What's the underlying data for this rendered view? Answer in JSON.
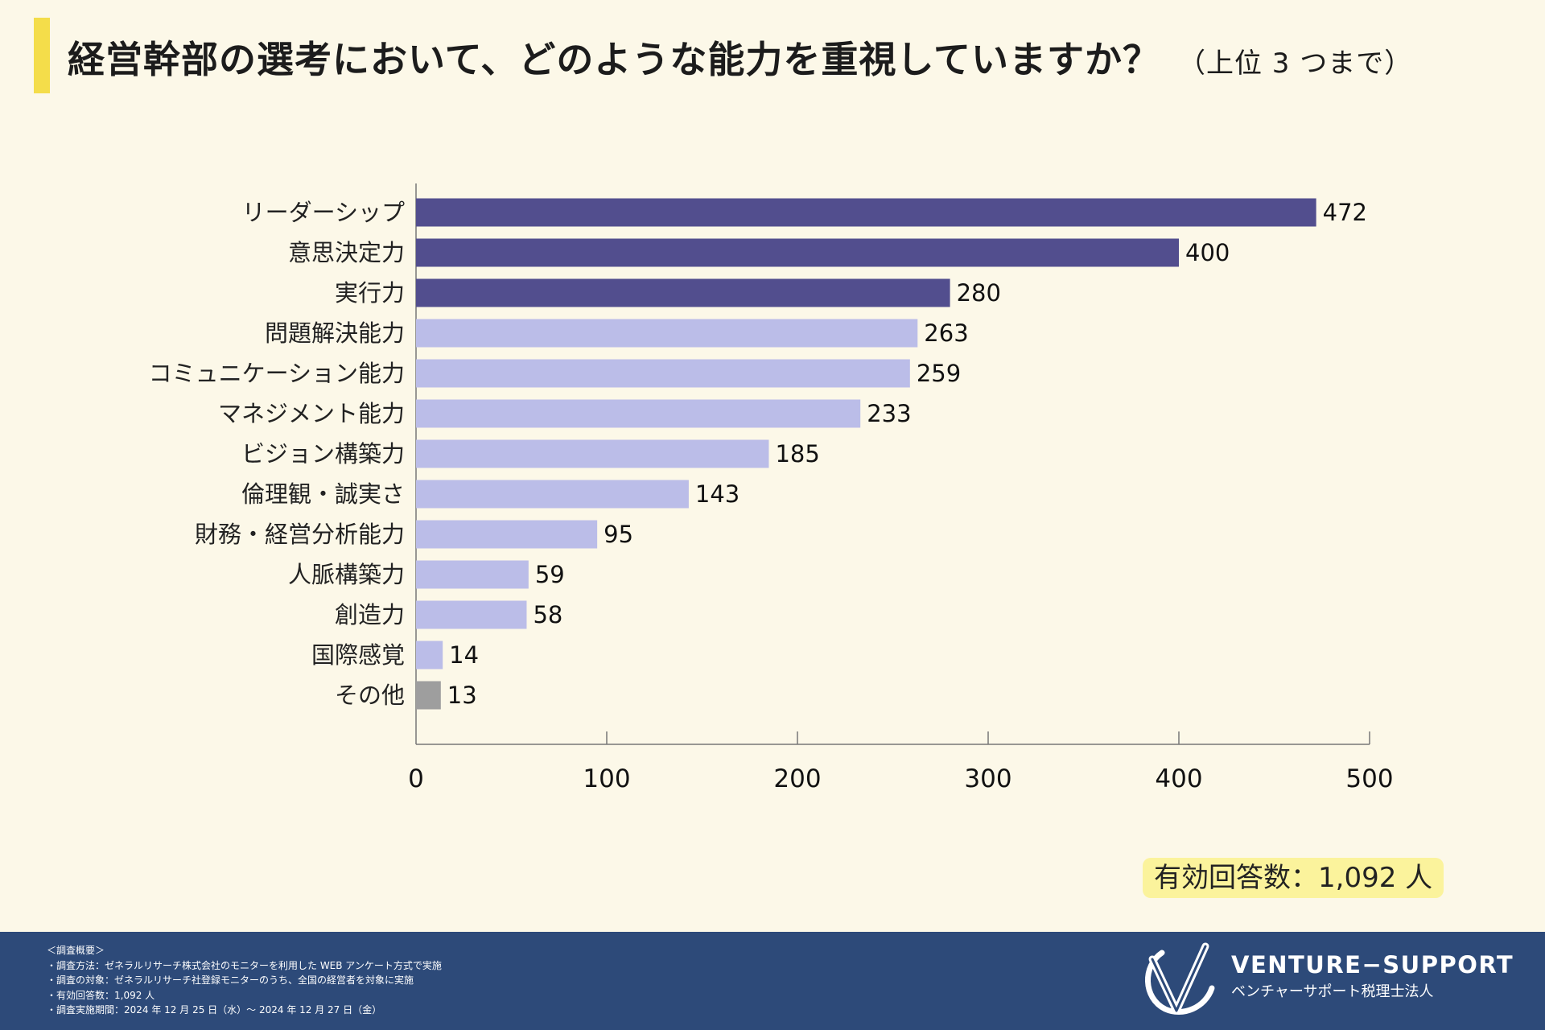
{
  "title": {
    "main": "経営幹部の選考において、どのような能力を重視していますか？",
    "sub": "（上位 3 つまで）"
  },
  "colors": {
    "accent": "#f4dd4a",
    "top3": "#524e8e",
    "other": "#bbbde8",
    "misc": "#9e9e9e",
    "footer": "#2d4a79",
    "badge": "#fbf39c"
  },
  "chart_data": {
    "type": "bar",
    "orientation": "horizontal",
    "categories": [
      "リーダーシップ",
      "意思決定力",
      "実行力",
      "問題解決能力",
      "コミュニケーション能力",
      "マネジメント能力",
      "ビジョン構築力",
      "倫理観・誠実さ",
      "財務・経営分析能力",
      "人脈構築力",
      "創造力",
      "国際感覚",
      "その他"
    ],
    "values": [
      472,
      400,
      280,
      263,
      259,
      233,
      185,
      143,
      95,
      59,
      58,
      14,
      13
    ],
    "color_groups": [
      "top3",
      "top3",
      "top3",
      "other",
      "other",
      "other",
      "other",
      "other",
      "other",
      "other",
      "other",
      "other",
      "misc"
    ],
    "xlim": [
      0,
      500
    ],
    "xticks": [
      0,
      100,
      200,
      300,
      400,
      500
    ],
    "title": "経営幹部の選考において、どのような能力を重視していますか？（上位 3 つまで）",
    "xlabel": "",
    "ylabel": "",
    "grid": false
  },
  "respondents": "有効回答数：1,092 人",
  "footer": {
    "notes": [
      "＜調査概要＞",
      "・調査方法：ゼネラルリサーチ株式会社のモニターを利用した WEB アンケート方式で実施",
      "・調査の対象：ゼネラルリサーチ社登録モニターのうち、全国の経営者を対象に実施",
      "・有効回答数：1,092 人",
      "・調査実施期間：2024 年 12 月 25 日（水）～ 2024 年 12 月 27 日（金）"
    ],
    "brand_en": "VENTURE−SUPPORT",
    "brand_jp": "ベンチャーサポート税理士法人"
  }
}
